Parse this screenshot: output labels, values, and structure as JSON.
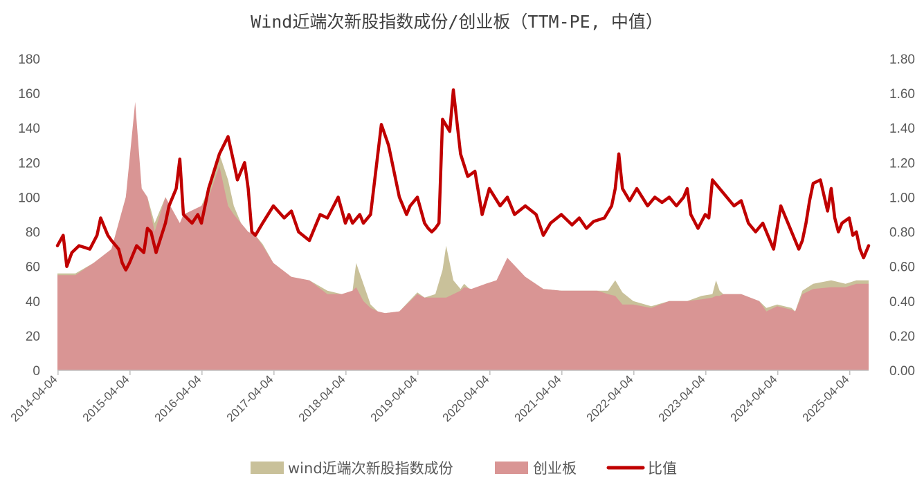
{
  "chart_data": {
    "type": "area",
    "title": "Wind近端次新股指数成份/创业板（TTM-PE, 中值）",
    "y_left": {
      "min": 0,
      "max": 180,
      "ticks": [
        "0",
        "20",
        "40",
        "60",
        "80",
        "100",
        "120",
        "140",
        "160",
        "180"
      ]
    },
    "y_right": {
      "min": 0,
      "max": 1.8,
      "ticks": [
        "0.00",
        "0.20",
        "0.40",
        "0.60",
        "0.80",
        "1.00",
        "1.20",
        "1.40",
        "1.60",
        "1.80"
      ]
    },
    "x_ticks": [
      "2014-04-04",
      "2015-04-04",
      "2016-04-04",
      "2017-04-04",
      "2018-04-04",
      "2019-04-04",
      "2020-04-04",
      "2021-04-04",
      "2022-04-04",
      "2023-04-04",
      "2024-04-04",
      "2025-04-04"
    ],
    "x_range": [
      2014.25,
      2025.52
    ],
    "legend": {
      "position": "bottom"
    },
    "colors": {
      "wind": "#c9c19a",
      "cyb": "#d99594",
      "ratio": "#c00000",
      "axis": "#bfbfbf"
    },
    "series": [
      {
        "name": "wind近端次新股指数成份",
        "axis": "left",
        "style": "area",
        "x": [
          2014.25,
          2014.5,
          2014.75,
          2015.0,
          2015.2,
          2015.33,
          2015.42,
          2015.5,
          2015.6,
          2015.75,
          2015.95,
          2016.0,
          2016.25,
          2016.35,
          2016.5,
          2016.62,
          2016.7,
          2016.8,
          2016.9,
          2017.0,
          2017.1,
          2017.25,
          2017.5,
          2017.75,
          2018.0,
          2018.2,
          2018.35,
          2018.4,
          2018.45,
          2018.5,
          2018.55,
          2018.6,
          2018.7,
          2018.8,
          2019.0,
          2019.25,
          2019.35,
          2019.5,
          2019.6,
          2019.65,
          2019.7,
          2019.75,
          2019.85,
          2019.9,
          2020.0,
          2020.2,
          2020.35,
          2020.5,
          2020.75,
          2021.0,
          2021.25,
          2021.5,
          2021.75,
          2021.9,
          2022.0,
          2022.1,
          2022.25,
          2022.5,
          2022.75,
          2023.0,
          2023.2,
          2023.35,
          2023.4,
          2023.45,
          2023.5,
          2023.75,
          2024.0,
          2024.1,
          2024.25,
          2024.45,
          2024.5,
          2024.6,
          2024.75,
          2025.0,
          2025.2,
          2025.35,
          2025.45,
          2025.52
        ],
        "values": [
          56,
          56,
          62,
          70,
          100,
          145,
          105,
          100,
          85,
          100,
          85,
          88,
          95,
          105,
          125,
          110,
          95,
          85,
          80,
          78,
          73,
          62,
          54,
          52,
          46,
          44,
          46,
          62,
          56,
          50,
          44,
          38,
          34,
          33,
          34,
          45,
          42,
          44,
          58,
          72,
          62,
          52,
          47,
          50,
          46,
          50,
          52,
          58,
          54,
          47,
          46,
          46,
          46,
          46,
          52,
          45,
          40,
          37,
          40,
          40,
          43,
          44,
          52,
          46,
          44,
          44,
          40,
          36,
          38,
          36,
          34,
          46,
          50,
          52,
          50,
          52,
          52,
          52
        ]
      },
      {
        "name": "创业板",
        "axis": "left",
        "style": "area",
        "x": [
          2014.25,
          2014.5,
          2014.75,
          2015.0,
          2015.2,
          2015.33,
          2015.42,
          2015.5,
          2015.6,
          2015.75,
          2015.95,
          2016.0,
          2016.25,
          2016.35,
          2016.5,
          2016.62,
          2016.7,
          2016.8,
          2016.9,
          2017.0,
          2017.1,
          2017.25,
          2017.5,
          2017.75,
          2018.0,
          2018.2,
          2018.35,
          2018.4,
          2018.45,
          2018.5,
          2018.55,
          2018.6,
          2018.7,
          2018.8,
          2019.0,
          2019.25,
          2019.35,
          2019.5,
          2019.6,
          2019.65,
          2019.7,
          2019.75,
          2019.85,
          2019.9,
          2020.0,
          2020.2,
          2020.35,
          2020.5,
          2020.75,
          2021.0,
          2021.25,
          2021.5,
          2021.75,
          2021.9,
          2022.0,
          2022.1,
          2022.25,
          2022.5,
          2022.75,
          2023.0,
          2023.2,
          2023.35,
          2023.4,
          2023.45,
          2023.5,
          2023.75,
          2024.0,
          2024.1,
          2024.25,
          2024.45,
          2024.5,
          2024.6,
          2024.75,
          2025.0,
          2025.2,
          2025.35,
          2025.45,
          2025.52
        ],
        "values": [
          55,
          55,
          62,
          70,
          100,
          155,
          105,
          100,
          80,
          100,
          85,
          90,
          95,
          100,
          118,
          95,
          90,
          85,
          80,
          78,
          72,
          62,
          54,
          52,
          44,
          44,
          46,
          48,
          44,
          40,
          38,
          36,
          34,
          33,
          34,
          44,
          42,
          42,
          42,
          42,
          43,
          44,
          46,
          48,
          47,
          50,
          52,
          65,
          54,
          47,
          46,
          46,
          46,
          44,
          43,
          38,
          38,
          36,
          40,
          40,
          41,
          42,
          43,
          43,
          44,
          44,
          40,
          34,
          37,
          35,
          34,
          44,
          47,
          48,
          48,
          50,
          50,
          50
        ]
      },
      {
        "name": "比值",
        "axis": "right",
        "style": "line",
        "x": [
          2014.25,
          2014.33,
          2014.38,
          2014.45,
          2014.55,
          2014.7,
          2014.8,
          2014.85,
          2014.95,
          2015.0,
          2015.1,
          2015.15,
          2015.2,
          2015.25,
          2015.35,
          2015.45,
          2015.5,
          2015.55,
          2015.62,
          2015.75,
          2015.8,
          2015.9,
          2015.95,
          2016.0,
          2016.12,
          2016.2,
          2016.25,
          2016.35,
          2016.5,
          2016.62,
          2016.7,
          2016.75,
          2016.85,
          2016.9,
          2016.95,
          2017.0,
          2017.1,
          2017.25,
          2017.4,
          2017.5,
          2017.6,
          2017.75,
          2017.9,
          2018.0,
          2018.15,
          2018.25,
          2018.3,
          2018.35,
          2018.45,
          2018.5,
          2018.6,
          2018.75,
          2018.85,
          2018.95,
          2019.0,
          2019.1,
          2019.15,
          2019.25,
          2019.35,
          2019.4,
          2019.45,
          2019.5,
          2019.55,
          2019.6,
          2019.7,
          2019.75,
          2019.85,
          2019.95,
          2020.05,
          2020.15,
          2020.25,
          2020.4,
          2020.5,
          2020.6,
          2020.75,
          2020.9,
          2021.0,
          2021.1,
          2021.25,
          2021.4,
          2021.5,
          2021.6,
          2021.7,
          2021.85,
          2021.95,
          2022.0,
          2022.05,
          2022.1,
          2022.2,
          2022.3,
          2022.45,
          2022.55,
          2022.65,
          2022.75,
          2022.85,
          2022.95,
          2023.0,
          2023.05,
          2023.15,
          2023.25,
          2023.3,
          2023.35,
          2023.45,
          2023.55,
          2023.65,
          2023.75,
          2023.85,
          2023.95,
          2024.05,
          2024.12,
          2024.2,
          2024.3,
          2024.4,
          2024.45,
          2024.55,
          2024.6,
          2024.65,
          2024.7,
          2024.75,
          2024.85,
          2024.95,
          2025.0,
          2025.05,
          2025.1,
          2025.15,
          2025.25,
          2025.3,
          2025.35,
          2025.4,
          2025.45,
          2025.52
        ],
        "values": [
          0.72,
          0.78,
          0.6,
          0.68,
          0.72,
          0.7,
          0.78,
          0.88,
          0.78,
          0.75,
          0.7,
          0.62,
          0.58,
          0.62,
          0.72,
          0.68,
          0.82,
          0.8,
          0.68,
          0.85,
          0.95,
          1.05,
          1.22,
          0.9,
          0.85,
          0.9,
          0.85,
          1.05,
          1.25,
          1.35,
          1.2,
          1.1,
          1.2,
          1.05,
          0.8,
          0.78,
          0.85,
          0.95,
          0.88,
          0.92,
          0.8,
          0.75,
          0.9,
          0.88,
          1.0,
          0.85,
          0.9,
          0.85,
          0.9,
          0.85,
          0.9,
          1.42,
          1.3,
          1.1,
          1.0,
          0.9,
          0.95,
          1.0,
          0.85,
          0.82,
          0.8,
          0.82,
          0.85,
          1.45,
          1.38,
          1.62,
          1.25,
          1.12,
          1.15,
          0.9,
          1.05,
          0.95,
          1.0,
          0.9,
          0.95,
          0.9,
          0.78,
          0.85,
          0.9,
          0.84,
          0.88,
          0.82,
          0.86,
          0.88,
          0.95,
          1.05,
          1.25,
          1.05,
          0.98,
          1.05,
          0.95,
          1.0,
          0.97,
          1.0,
          0.95,
          1.0,
          1.05,
          0.9,
          0.82,
          0.9,
          0.88,
          1.1,
          1.05,
          1.0,
          0.95,
          0.98,
          0.85,
          0.8,
          0.85,
          0.78,
          0.7,
          0.95,
          0.85,
          0.8,
          0.7,
          0.75,
          0.85,
          0.98,
          1.08,
          1.1,
          0.92,
          1.05,
          0.88,
          0.8,
          0.85,
          0.88,
          0.78,
          0.8,
          0.7,
          0.65,
          0.72
        ]
      }
    ]
  }
}
